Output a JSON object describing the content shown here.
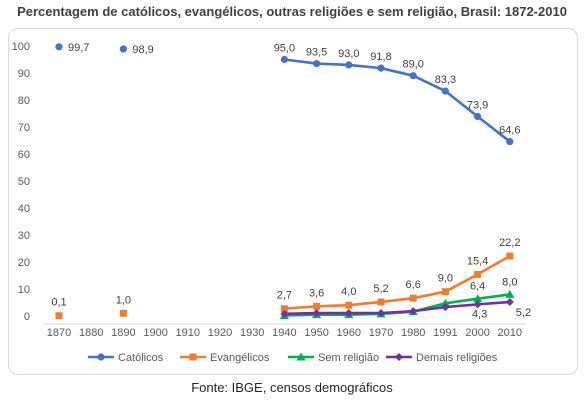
{
  "page": {
    "title": "Percentagem de católicos, evangélicos, outras religiões e sem religião, Brasil: 1872-2010",
    "source": "Fonte: IBGE, censos demográficos"
  },
  "chart_data": {
    "type": "line",
    "title": "Percentagem de católicos, evangélicos, outras religiões e sem religião, Brasil: 1872-2010",
    "categories": [
      "1870",
      "1880",
      "1890",
      "1900",
      "1910",
      "1920",
      "1930",
      "1940",
      "1950",
      "1960",
      "1970",
      "1980",
      "1991",
      "2000",
      "2010"
    ],
    "ylim": [
      0,
      100
    ],
    "yticks": [
      0,
      10,
      20,
      30,
      40,
      50,
      60,
      70,
      80,
      90,
      100
    ],
    "grid": false,
    "legend_position": "bottom",
    "series": [
      {
        "name": "Católicos",
        "color": "#4472c4",
        "marker": "circle",
        "points": [
          {
            "x": "1870",
            "y": 99.7,
            "label": "99,7",
            "connected": false
          },
          {
            "x": "1890",
            "y": 98.9,
            "label": "98,9",
            "connected": false
          },
          {
            "x": "1940",
            "y": 95.0,
            "label": "95,0"
          },
          {
            "x": "1950",
            "y": 93.5,
            "label": "93,5"
          },
          {
            "x": "1960",
            "y": 93.0,
            "label": "93,0"
          },
          {
            "x": "1970",
            "y": 91.8,
            "label": "91,8"
          },
          {
            "x": "1980",
            "y": 89.0,
            "label": "89,0"
          },
          {
            "x": "1991",
            "y": 83.3,
            "label": "83,3"
          },
          {
            "x": "2000",
            "y": 73.9,
            "label": "73,9"
          },
          {
            "x": "2010",
            "y": 64.6,
            "label": "64,6"
          }
        ]
      },
      {
        "name": "Evangélicos",
        "color": "#ed7d31",
        "marker": "square",
        "points": [
          {
            "x": "1870",
            "y": 0.1,
            "label": "0,1",
            "connected": false
          },
          {
            "x": "1890",
            "y": 1.0,
            "label": "1,0",
            "connected": false
          },
          {
            "x": "1940",
            "y": 2.7,
            "label": "2,7"
          },
          {
            "x": "1950",
            "y": 3.6,
            "label": "3,6"
          },
          {
            "x": "1960",
            "y": 4.0,
            "label": "4,0"
          },
          {
            "x": "1970",
            "y": 5.2,
            "label": "5,2"
          },
          {
            "x": "1980",
            "y": 6.6,
            "label": "6,6"
          },
          {
            "x": "1991",
            "y": 9.0,
            "label": "9,0"
          },
          {
            "x": "2000",
            "y": 15.4,
            "label": "15,4"
          },
          {
            "x": "2010",
            "y": 22.2,
            "label": "22,2"
          }
        ]
      },
      {
        "name": "Sem religião",
        "color": "#00b050",
        "marker": "triangle",
        "points": [
          {
            "x": "1940",
            "y": 0.2
          },
          {
            "x": "1950",
            "y": 0.5
          },
          {
            "x": "1960",
            "y": 0.5
          },
          {
            "x": "1970",
            "y": 0.8
          },
          {
            "x": "1980",
            "y": 1.6
          },
          {
            "x": "1991",
            "y": 4.7
          },
          {
            "x": "2000",
            "y": 6.4,
            "label": "6,4"
          },
          {
            "x": "2010",
            "y": 8.0,
            "label": "8,0"
          }
        ]
      },
      {
        "name": "Demais religiões",
        "color": "#7030a0",
        "marker": "diamond",
        "points": [
          {
            "x": "1940",
            "y": 0.8
          },
          {
            "x": "1950",
            "y": 1.1
          },
          {
            "x": "1960",
            "y": 1.1
          },
          {
            "x": "1970",
            "y": 1.1
          },
          {
            "x": "1980",
            "y": 1.8
          },
          {
            "x": "1991",
            "y": 3.3
          },
          {
            "x": "2000",
            "y": 4.3,
            "label": "4,3"
          },
          {
            "x": "2010",
            "y": 5.2,
            "label": "5,2"
          }
        ]
      }
    ]
  }
}
